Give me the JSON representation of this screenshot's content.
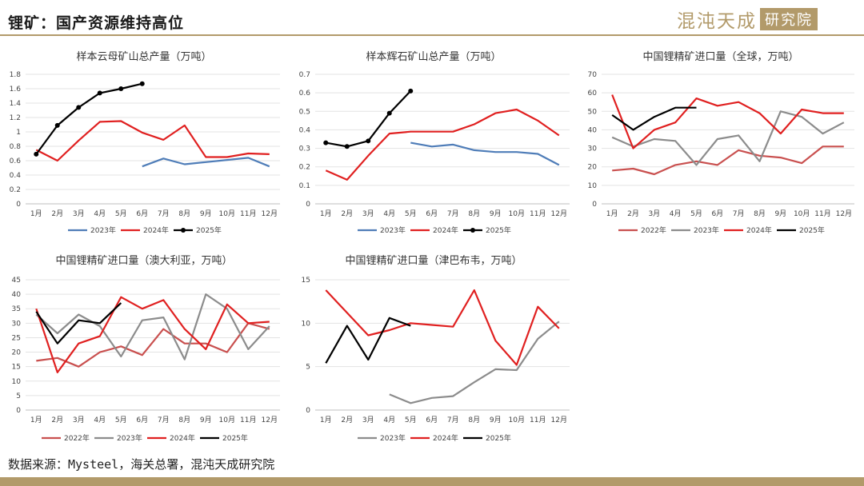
{
  "page": {
    "title": "锂矿：国产资源维持高位",
    "logo_text": "混沌天成",
    "logo_box": "研究院",
    "source": "数据来源：Mysteel，海关总署，混沌天成研究院"
  },
  "colors": {
    "2022年": "#c9504f",
    "2023年_blue": "#4f7db8",
    "2023年_gray": "#8c8c8c",
    "2024年": "#e02020",
    "2025年": "#000000",
    "accent": "#b29a6a"
  },
  "chart_data": [
    {
      "id": "c1",
      "type": "line",
      "title": "样本云母矿山总产量（万吨）",
      "categories": [
        "1月",
        "2月",
        "3月",
        "4月",
        "5月",
        "6月",
        "7月",
        "8月",
        "9月",
        "10月",
        "11月",
        "12月"
      ],
      "yticks": [
        "0",
        "0.2",
        "0.4",
        "0.6",
        "0.8",
        "1",
        "1.2",
        "1.4",
        "1.6",
        "1.8"
      ],
      "ylim": [
        0,
        1.8
      ],
      "series": [
        {
          "name": "2023年",
          "color": "#4f7db8",
          "marker": false,
          "values": [
            null,
            null,
            null,
            null,
            null,
            0.52,
            0.63,
            0.55,
            0.58,
            0.61,
            0.64,
            0.52
          ]
        },
        {
          "name": "2024年",
          "color": "#e02020",
          "marker": false,
          "values": [
            0.75,
            0.6,
            0.88,
            1.14,
            1.15,
            0.99,
            0.89,
            1.09,
            0.65,
            0.65,
            0.7,
            0.69
          ]
        },
        {
          "name": "2025年",
          "color": "#000000",
          "marker": true,
          "values": [
            0.69,
            1.09,
            1.34,
            1.54,
            1.6,
            1.67,
            null,
            null,
            null,
            null,
            null,
            null
          ]
        }
      ]
    },
    {
      "id": "c2",
      "type": "line",
      "title": "样本辉石矿山总产量（万吨）",
      "categories": [
        "1月",
        "2月",
        "3月",
        "4月",
        "5月",
        "6月",
        "7月",
        "8月",
        "9月",
        "10月",
        "11月",
        "12月"
      ],
      "yticks": [
        "0",
        "0.1",
        "0.2",
        "0.3",
        "0.4",
        "0.5",
        "0.6",
        "0.7"
      ],
      "ylim": [
        0,
        0.7
      ],
      "series": [
        {
          "name": "2023年",
          "color": "#4f7db8",
          "marker": false,
          "values": [
            null,
            null,
            null,
            null,
            0.33,
            0.31,
            0.32,
            0.29,
            0.28,
            0.28,
            0.27,
            0.21
          ]
        },
        {
          "name": "2024年",
          "color": "#e02020",
          "marker": false,
          "values": [
            0.18,
            0.13,
            0.26,
            0.38,
            0.39,
            0.39,
            0.39,
            0.43,
            0.49,
            0.51,
            0.45,
            0.37
          ]
        },
        {
          "name": "2025年",
          "color": "#000000",
          "marker": true,
          "values": [
            0.33,
            0.31,
            0.34,
            0.49,
            0.61,
            null,
            null,
            null,
            null,
            null,
            null,
            null
          ]
        }
      ]
    },
    {
      "id": "c3",
      "type": "line",
      "title": "中国锂精矿进口量（全球，万吨）",
      "categories": [
        "1月",
        "2月",
        "3月",
        "4月",
        "5月",
        "6月",
        "7月",
        "8月",
        "9月",
        "10月",
        "11月",
        "12月"
      ],
      "yticks": [
        "0",
        "10",
        "20",
        "30",
        "40",
        "50",
        "60",
        "70"
      ],
      "ylim": [
        0,
        70
      ],
      "series": [
        {
          "name": "2022年",
          "color": "#c9504f",
          "marker": false,
          "values": [
            18,
            19,
            16,
            21,
            23,
            21,
            29,
            26,
            25,
            22,
            31,
            31
          ]
        },
        {
          "name": "2023年",
          "color": "#8c8c8c",
          "marker": false,
          "values": [
            36,
            31,
            35,
            34,
            21,
            35,
            37,
            23,
            50,
            47,
            38,
            44
          ]
        },
        {
          "name": "2024年",
          "color": "#e02020",
          "marker": false,
          "values": [
            59,
            30,
            40,
            44,
            57,
            53,
            55,
            49,
            38,
            51,
            49,
            49
          ]
        },
        {
          "name": "2025年",
          "color": "#000000",
          "marker": false,
          "values": [
            48,
            40,
            47,
            52,
            52,
            null,
            null,
            null,
            null,
            null,
            null,
            null
          ]
        }
      ]
    },
    {
      "id": "c4",
      "type": "line",
      "title": "中国锂精矿进口量（澳大利亚，万吨）",
      "categories": [
        "1月",
        "2月",
        "3月",
        "4月",
        "5月",
        "6月",
        "7月",
        "8月",
        "9月",
        "10月",
        "11月",
        "12月"
      ],
      "yticks": [
        "0",
        "5",
        "10",
        "15",
        "20",
        "25",
        "30",
        "35",
        "40",
        "45"
      ],
      "ylim": [
        0,
        45
      ],
      "series": [
        {
          "name": "2022年",
          "color": "#c9504f",
          "marker": false,
          "values": [
            17,
            18,
            15,
            20,
            22,
            19,
            28,
            23,
            23,
            20,
            30,
            28
          ]
        },
        {
          "name": "2023年",
          "color": "#8c8c8c",
          "marker": false,
          "values": [
            33,
            26.5,
            33,
            29,
            18.5,
            31,
            32,
            17.5,
            40,
            35,
            21,
            29
          ]
        },
        {
          "name": "2024年",
          "color": "#e02020",
          "marker": false,
          "values": [
            35,
            13,
            23,
            25.5,
            39,
            35,
            38,
            28,
            21,
            36.5,
            30,
            30.5
          ]
        },
        {
          "name": "2025年",
          "color": "#000000",
          "marker": false,
          "values": [
            34,
            23,
            31,
            30,
            37,
            null,
            null,
            null,
            null,
            null,
            null,
            null
          ]
        }
      ]
    },
    {
      "id": "c5",
      "type": "line",
      "title": "中国锂精矿进口量（津巴布韦，万吨）",
      "categories": [
        "1月",
        "2月",
        "3月",
        "4月",
        "5月",
        "6月",
        "7月",
        "8月",
        "9月",
        "10月",
        "11月",
        "12月"
      ],
      "yticks": [
        "0",
        "5",
        "10",
        "15"
      ],
      "ylim": [
        0,
        15
      ],
      "series": [
        {
          "name": "2023年",
          "color": "#8c8c8c",
          "marker": false,
          "values": [
            null,
            null,
            null,
            1.8,
            0.8,
            1.4,
            1.6,
            3.2,
            4.7,
            4.6,
            8.2,
            10.2
          ]
        },
        {
          "name": "2024年",
          "color": "#e02020",
          "marker": false,
          "values": [
            13.8,
            11.2,
            8.6,
            9.2,
            10.0,
            9.8,
            9.6,
            13.8,
            8.0,
            5.2,
            11.9,
            9.4
          ]
        },
        {
          "name": "2025年",
          "color": "#000000",
          "marker": false,
          "values": [
            5.4,
            9.7,
            5.8,
            10.6,
            9.7,
            null,
            null,
            null,
            null,
            null,
            null,
            null
          ]
        }
      ]
    }
  ]
}
